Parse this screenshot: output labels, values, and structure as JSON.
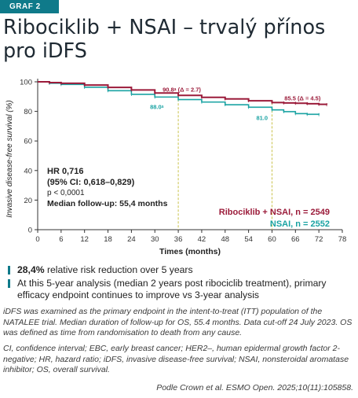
{
  "header": {
    "badge": "GRAF 2",
    "title_line1": "Ribociklib + NSAI – trvalý přínos",
    "title_line2": "pro iDFS"
  },
  "chart_data": {
    "type": "line",
    "ylabel": "Invasive disease-free survival (%)",
    "xlabel": "Times (months)",
    "xlim": [
      0,
      78
    ],
    "ylim": [
      0,
      100
    ],
    "x_ticks": [
      0,
      6,
      12,
      18,
      24,
      30,
      36,
      42,
      48,
      54,
      60,
      66,
      72,
      78
    ],
    "y_ticks": [
      0,
      20,
      40,
      60,
      80,
      100
    ],
    "series": [
      {
        "name": "Ribociklib + NSAI, n = 2549",
        "color": "#9b1b3a",
        "x": [
          0,
          3,
          6,
          12,
          18,
          24,
          30,
          36,
          42,
          48,
          54,
          60,
          63,
          66,
          69,
          72,
          74
        ],
        "y": [
          100,
          99.5,
          99,
          97.8,
          96.2,
          94.5,
          92.4,
          90.8,
          89.5,
          88.4,
          87.2,
          86.0,
          85.7,
          85.5,
          85.2,
          84.8,
          84.5
        ]
      },
      {
        "name": "NSAI, n = 2552",
        "color": "#1aa3a3",
        "x": [
          0,
          3,
          6,
          12,
          18,
          24,
          30,
          36,
          42,
          48,
          54,
          60,
          63,
          66,
          69,
          72
        ],
        "y": [
          100,
          99,
          98.2,
          96.3,
          94.0,
          91.5,
          89.7,
          88.0,
          86.3,
          84.5,
          82.8,
          81.0,
          79.8,
          78.5,
          78.0,
          77.8
        ]
      }
    ],
    "annotations": [
      {
        "text": "90.8ᵃ (Δ = 2.7)",
        "x": 36,
        "y": 90.8,
        "color": "#9b1b3a"
      },
      {
        "text": "85.5 (Δ = 4.5)",
        "x": 66,
        "y": 85.5,
        "color": "#9b1b3a"
      },
      {
        "text": "88.0ᵃ",
        "x": 36,
        "y": 88.0,
        "color": "#1aa3a3"
      },
      {
        "text": "81.0",
        "x": 60,
        "y": 81.0,
        "color": "#1aa3a3"
      }
    ],
    "reference_lines_x": [
      36,
      60
    ],
    "stats": {
      "hr": "HR 0,716",
      "ci": "(95% CI: 0,618–0,829)",
      "p": "p < 0,0001",
      "followup": "Median follow-up: 55,4 months"
    }
  },
  "bullets": [
    {
      "bold": "28,4%",
      "text": " relative risk reduction over 5 years"
    },
    {
      "bold": "",
      "text": "At this 5-year analysis (median 2 years post ribociclib treatment), primary efficacy endpoint continues to improve vs 3-year analysis"
    }
  ],
  "footnote1": "iDFS was examined as the primary endpoint in the intent-to-treat (ITT) population of the NATALEE trial. Median duration of follow-up for OS, 55.4 months. Data cut-off 24 July 2023. OS was defined as time from randomisation to death from any cause.",
  "footnote2": "CI, confidence interval; EBC, early breast cancer; HER2–, human epidermal growth factor 2-negative; HR, hazard ratio; iDFS, invasive disease-free survival; NSAI, nonsteroidal aromatase inhibitor; OS, overall survival.",
  "source": "Podle Crown et al. ESMO Open. 2025;10(11):105858."
}
